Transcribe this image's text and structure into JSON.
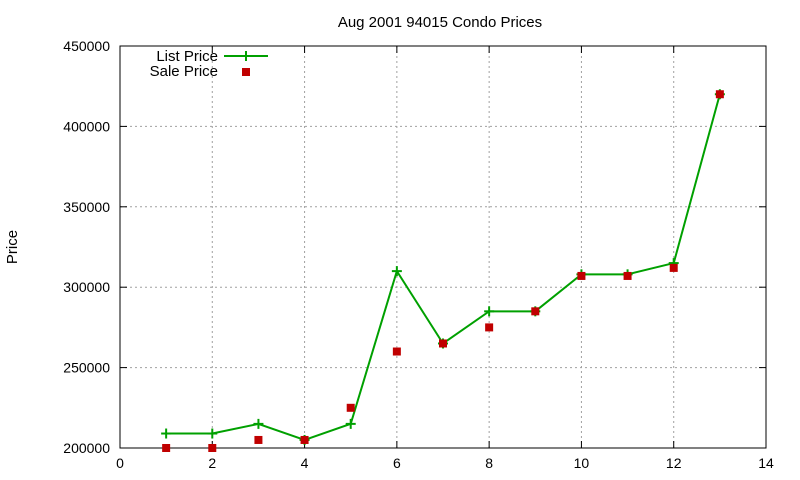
{
  "chart_data": {
    "type": "line",
    "title": "Aug 2001 94015 Condo Prices",
    "xlabel": "",
    "ylabel": "Price",
    "xlim": [
      0,
      14
    ],
    "ylim": [
      200000,
      450000
    ],
    "grid": true,
    "legend_position": "top-left",
    "x_ticks": [
      0,
      2,
      4,
      6,
      8,
      10,
      12,
      14
    ],
    "y_ticks": [
      200000,
      250000,
      300000,
      350000,
      400000,
      450000
    ],
    "series": [
      {
        "name": "List Price",
        "style": "lines+points",
        "marker": "plus",
        "color": "#00a000",
        "x": [
          1,
          2,
          3,
          4,
          5,
          6,
          7,
          8,
          9,
          10,
          11,
          12,
          13
        ],
        "y": [
          209000,
          209000,
          215000,
          205000,
          215000,
          310000,
          265000,
          285000,
          285000,
          308000,
          308000,
          315000,
          420000
        ]
      },
      {
        "name": "Sale Price",
        "style": "points",
        "marker": "square",
        "color": "#c00000",
        "x": [
          1,
          2,
          3,
          4,
          5,
          6,
          7,
          8,
          9,
          10,
          11,
          12,
          13
        ],
        "y": [
          200000,
          200000,
          205000,
          205000,
          225000,
          260000,
          265000,
          275000,
          285000,
          307000,
          307000,
          312000,
          420000
        ]
      }
    ]
  }
}
